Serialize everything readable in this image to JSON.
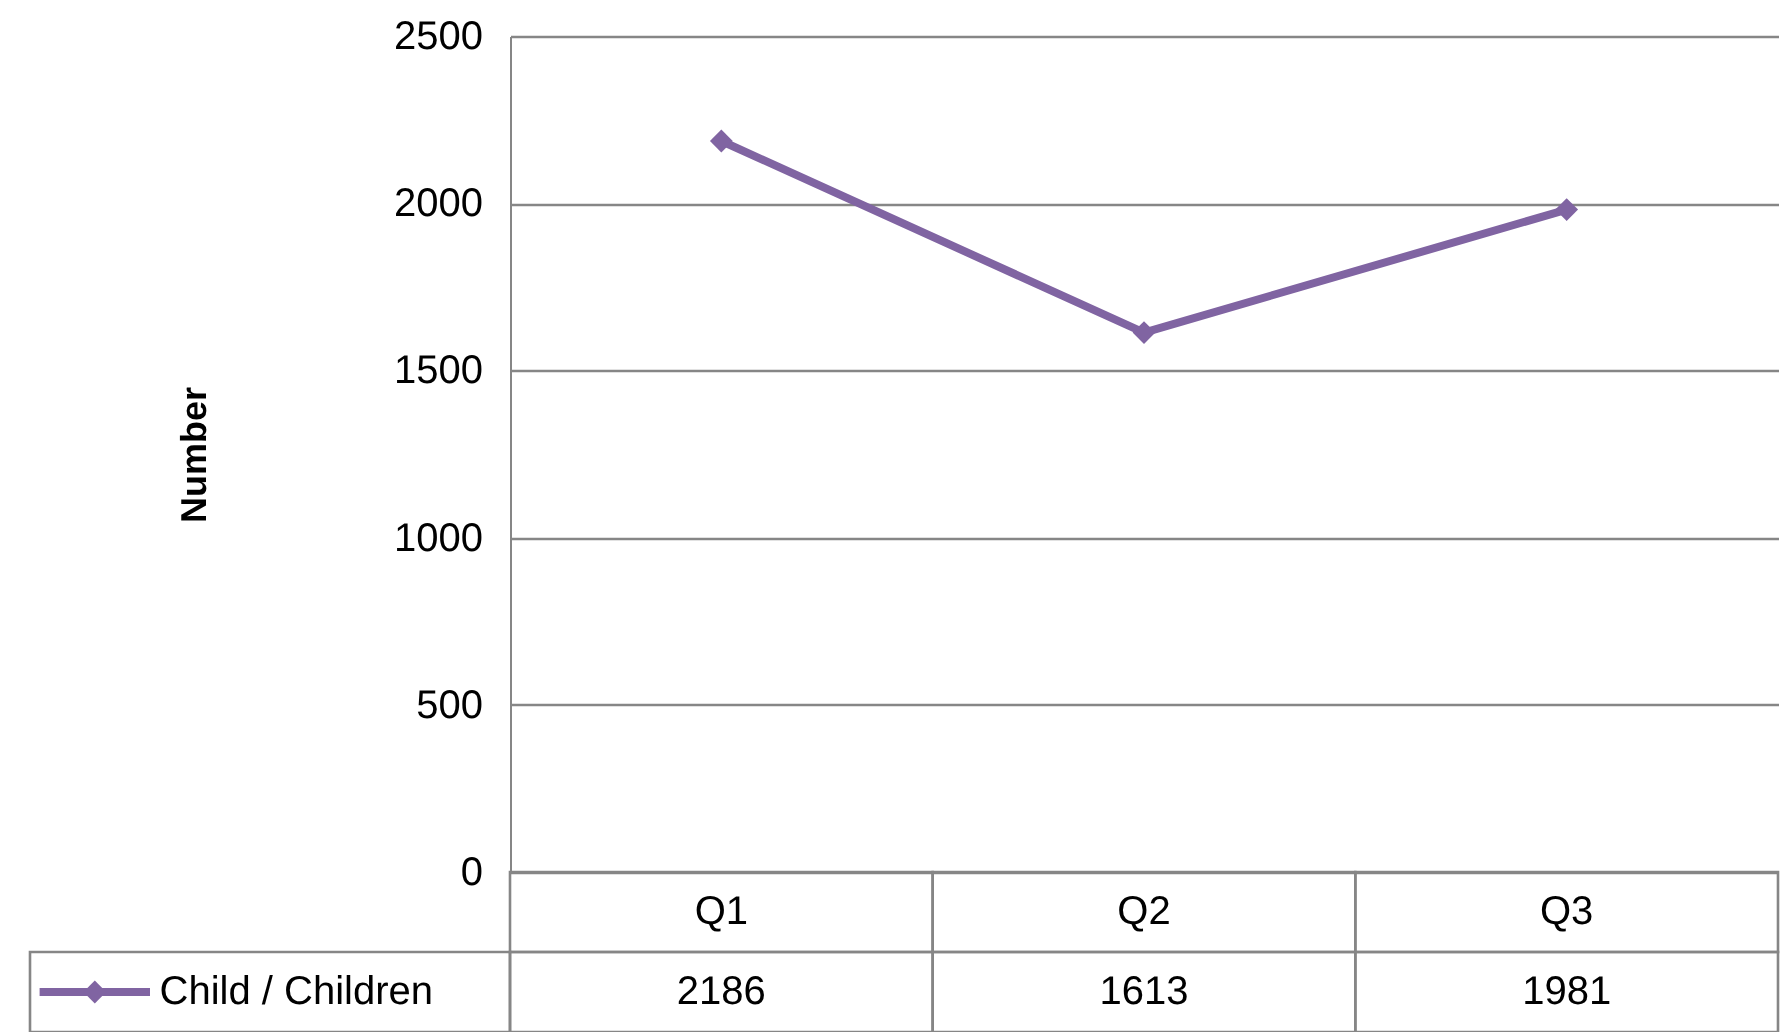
{
  "chart_data": {
    "type": "line",
    "ylabel": "Number",
    "categories": [
      "Q1",
      "Q2",
      "Q3"
    ],
    "series": [
      {
        "name": "Child / Children",
        "color": "#8064a2",
        "values": [
          2186,
          1613,
          1981
        ]
      }
    ],
    "ylim": [
      0,
      2500
    ],
    "yticks": [
      0,
      500,
      1000,
      1500,
      2000,
      2500
    ],
    "grid": "y",
    "marker": "diamond",
    "legend": "bottom",
    "data_labels": true
  }
}
